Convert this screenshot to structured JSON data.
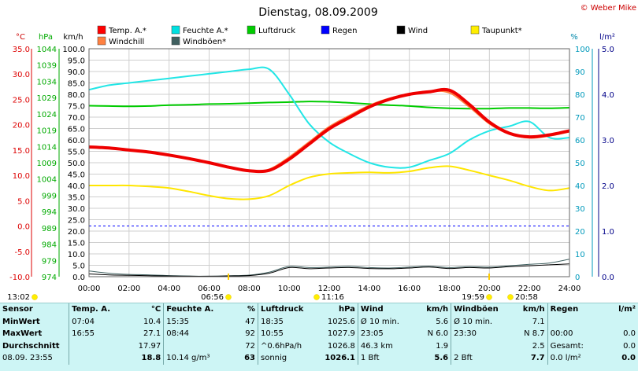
{
  "title": "Dienstag, 08.09.2009",
  "copyright": "© Weber Mike",
  "legend": [
    {
      "name": "Temp. A.*",
      "color": "#ff0000"
    },
    {
      "name": "Feuchte A.*",
      "color": "#00e0e0"
    },
    {
      "name": "Luftdruck",
      "color": "#00cc00"
    },
    {
      "name": "Regen",
      "color": "#0000ff"
    },
    {
      "name": "Wind",
      "color": "#000000"
    },
    {
      "name": "Taupunkt*",
      "color": "#ffee00"
    },
    {
      "name": "Windchill",
      "color": "#ff8040"
    },
    {
      "name": "Windböen*",
      "color": "#406060"
    }
  ],
  "axis_units": {
    "temp": "°C",
    "pressure": "hPa",
    "wind": "km/h",
    "humidity": "%",
    "rain": "l/m²"
  },
  "axis_ticks": {
    "temp": [
      "35.0",
      "30.0",
      "25.0",
      "20.0",
      "15.0",
      "10.0",
      "5.0",
      "0.0",
      "-5.0",
      "-10.0"
    ],
    "pressure": [
      "1044",
      "1039",
      "1034",
      "1029",
      "1024",
      "1019",
      "1014",
      "1009",
      "1004",
      "999",
      "994",
      "989",
      "984",
      "979",
      "974"
    ],
    "wind": [
      "100.0",
      "95.0",
      "90.0",
      "85.0",
      "80.0",
      "75.0",
      "70.0",
      "65.0",
      "60.0",
      "55.0",
      "50.0",
      "45.0",
      "40.0",
      "35.0",
      "30.0",
      "25.0",
      "20.0",
      "15.0",
      "10.0",
      "5.0",
      "0.0"
    ],
    "humidity": [
      "100",
      "90",
      "80",
      "70",
      "60",
      "50",
      "40",
      "30",
      "20",
      "10",
      "0"
    ],
    "rain": [
      "5.0",
      "4.0",
      "3.0",
      "2.0",
      "1.0",
      "0.0"
    ],
    "time": [
      "00:00",
      "02:00",
      "04:00",
      "06:00",
      "08:00",
      "10:00",
      "12:00",
      "14:00",
      "16:00",
      "18:00",
      "20:00",
      "22:00",
      "24:00"
    ]
  },
  "sun_markers": [
    {
      "label": "13:02"
    },
    {
      "label": "06:56"
    },
    {
      "label": "11:16"
    },
    {
      "label": "19:59"
    },
    {
      "label": "20:58"
    }
  ],
  "chart_data": {
    "type": "line",
    "x_label": "",
    "x": [
      "00:00",
      "01:00",
      "02:00",
      "03:00",
      "04:00",
      "05:00",
      "06:00",
      "07:00",
      "08:00",
      "09:00",
      "10:00",
      "11:00",
      "12:00",
      "13:00",
      "14:00",
      "15:00",
      "16:00",
      "17:00",
      "18:00",
      "19:00",
      "20:00",
      "21:00",
      "22:00",
      "23:00",
      "24:00"
    ],
    "xlim": [
      "00:00",
      "24:00"
    ],
    "series": [
      {
        "name": "Temp. A.*",
        "axis": "°C",
        "values": [
          15.6,
          15.4,
          15.0,
          14.6,
          14.0,
          13.3,
          12.5,
          11.6,
          10.9,
          11.0,
          13.2,
          16.2,
          19.2,
          21.4,
          23.5,
          25.0,
          26.0,
          26.5,
          26.8,
          24.0,
          20.5,
          18.3,
          17.6,
          18.0,
          18.8
        ]
      },
      {
        "name": "Windchill",
        "axis": "°C",
        "values": [
          15.6,
          15.4,
          15.0,
          14.6,
          14.0,
          13.3,
          12.5,
          11.6,
          10.9,
          11.2,
          13.6,
          16.6,
          19.6,
          21.8,
          23.8,
          25.2,
          26.1,
          26.6,
          26.3,
          23.5,
          20.2,
          18.2,
          17.4,
          17.8,
          18.6
        ]
      },
      {
        "name": "Feuchte A.*",
        "axis": "%",
        "values": [
          82,
          84,
          85,
          86,
          87,
          88,
          89,
          90,
          91,
          91,
          80,
          67,
          59,
          54,
          50,
          48,
          48,
          51,
          54,
          60,
          64,
          66,
          68,
          61,
          61
        ]
      },
      {
        "name": "Taupunkt*",
        "axis": "°C",
        "values": [
          8.0,
          8.0,
          8.0,
          7.8,
          7.5,
          6.8,
          6.0,
          5.4,
          5.3,
          6.0,
          8.0,
          9.6,
          10.3,
          10.5,
          10.6,
          10.5,
          10.8,
          11.5,
          11.8,
          11.0,
          10.0,
          9.0,
          7.8,
          7.0,
          7.5
        ]
      },
      {
        "name": "Luftdruck",
        "axis": "hPa",
        "values": [
          1026.5,
          1026.4,
          1026.3,
          1026.4,
          1026.7,
          1026.8,
          1027.0,
          1027.1,
          1027.3,
          1027.5,
          1027.6,
          1027.8,
          1027.7,
          1027.4,
          1027.0,
          1026.7,
          1026.4,
          1026.0,
          1025.7,
          1025.6,
          1025.6,
          1025.8,
          1025.8,
          1025.7,
          1025.9
        ]
      },
      {
        "name": "Wind",
        "axis": "km/h",
        "values": [
          1.2,
          0.8,
          0.6,
          0.4,
          0.3,
          0.2,
          0.2,
          0.3,
          0.5,
          1.5,
          4.0,
          3.5,
          3.8,
          4.0,
          3.6,
          3.5,
          3.8,
          4.2,
          3.6,
          4.0,
          3.8,
          4.4,
          4.8,
          5.2,
          5.6
        ]
      },
      {
        "name": "Windböen*",
        "axis": "km/h",
        "values": [
          2.5,
          1.5,
          1.0,
          0.8,
          0.5,
          0.3,
          0.2,
          0.4,
          0.7,
          2.0,
          4.5,
          4.0,
          4.2,
          4.5,
          4.0,
          3.8,
          4.2,
          4.6,
          4.0,
          4.4,
          4.2,
          4.8,
          5.4,
          6.0,
          7.7
        ]
      },
      {
        "name": "Regen",
        "axis": "l/m²",
        "values": [
          0,
          0,
          0,
          0,
          0,
          0,
          0,
          0,
          0,
          0,
          0,
          0,
          0,
          0,
          0,
          0,
          0,
          0,
          0,
          0,
          0,
          0,
          0,
          0,
          0
        ]
      }
    ],
    "reference_lines": [
      {
        "axis": "°C",
        "value": 0.0,
        "color": "#0000ff",
        "style": "dashed"
      }
    ],
    "ylim": {
      "temp": [
        -10,
        35
      ],
      "pressure": [
        974,
        1044
      ],
      "wind": [
        0,
        100
      ],
      "humidity": [
        0,
        100
      ],
      "rain": [
        0,
        5
      ]
    },
    "grid": true
  },
  "stats_table": {
    "headers": [
      "Sensor",
      "Temp. A.",
      "°C",
      "Feuchte A.",
      "%",
      "Luftdruck",
      "hPa",
      "Wind",
      "km/h",
      "Windböen",
      "km/h",
      "Regen",
      "l/m²"
    ],
    "rows": [
      [
        "MinWert",
        "07:04",
        "10.4",
        "15:35",
        "47",
        "18:35",
        "1025.6",
        "Ø 10 min.",
        "5.6",
        "Ø 10 min.",
        "7.1",
        "",
        ""
      ],
      [
        "MaxWert",
        "16:55",
        "27.1",
        "08:44",
        "92",
        "10:55",
        "1027.9",
        "23:05",
        "N 6.0",
        "23:30",
        "N 8.7",
        "00:00",
        "0.0"
      ],
      [
        "Durchschnitt",
        "",
        "17.97",
        "",
        "72",
        "^0.6hPa/h",
        "1026.8",
        "46.3 km",
        "1.9",
        "",
        "2.5",
        "Gesamt:",
        "0.0"
      ],
      [
        "08.09. 23:55",
        "",
        "18.8",
        "10.14 g/m³",
        "63",
        "sonnig",
        "1026.1",
        "1 Bft",
        "5.6",
        "2 Bft",
        "7.7",
        "0.0 l/m²",
        "0.0"
      ]
    ]
  }
}
